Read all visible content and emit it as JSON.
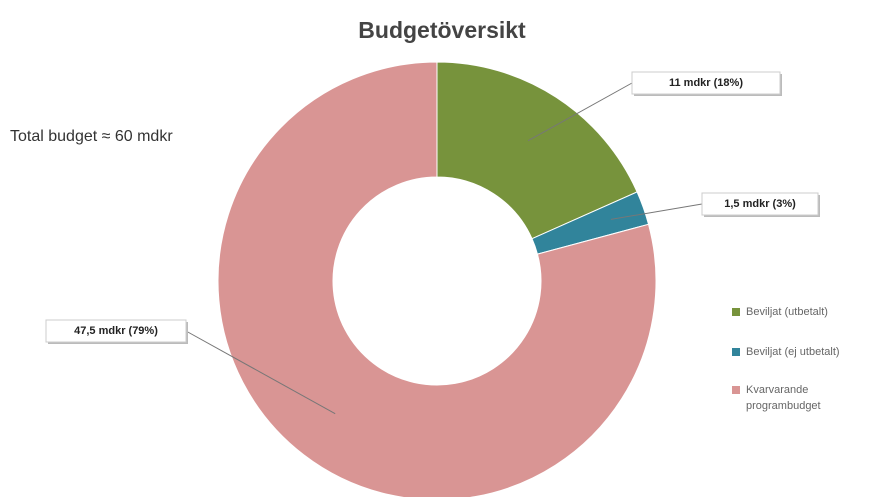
{
  "chart_data": {
    "type": "donut",
    "title": "Budgetöversikt",
    "annotation": "Total budget ≈ 60 mdkr",
    "categories": [
      "Beviljat (utbetalt)",
      "Beviljat (ej utbetalt)",
      "Kvarvarande programbudget"
    ],
    "values": [
      11,
      1.5,
      47.5
    ],
    "value_labels": [
      "11 mdkr (18%)",
      "1,5 mdkr (3%)",
      "47,5 mdkr (79%)"
    ],
    "colors": [
      "#77933c",
      "#31849b",
      "#d99594"
    ],
    "legend": "right"
  }
}
